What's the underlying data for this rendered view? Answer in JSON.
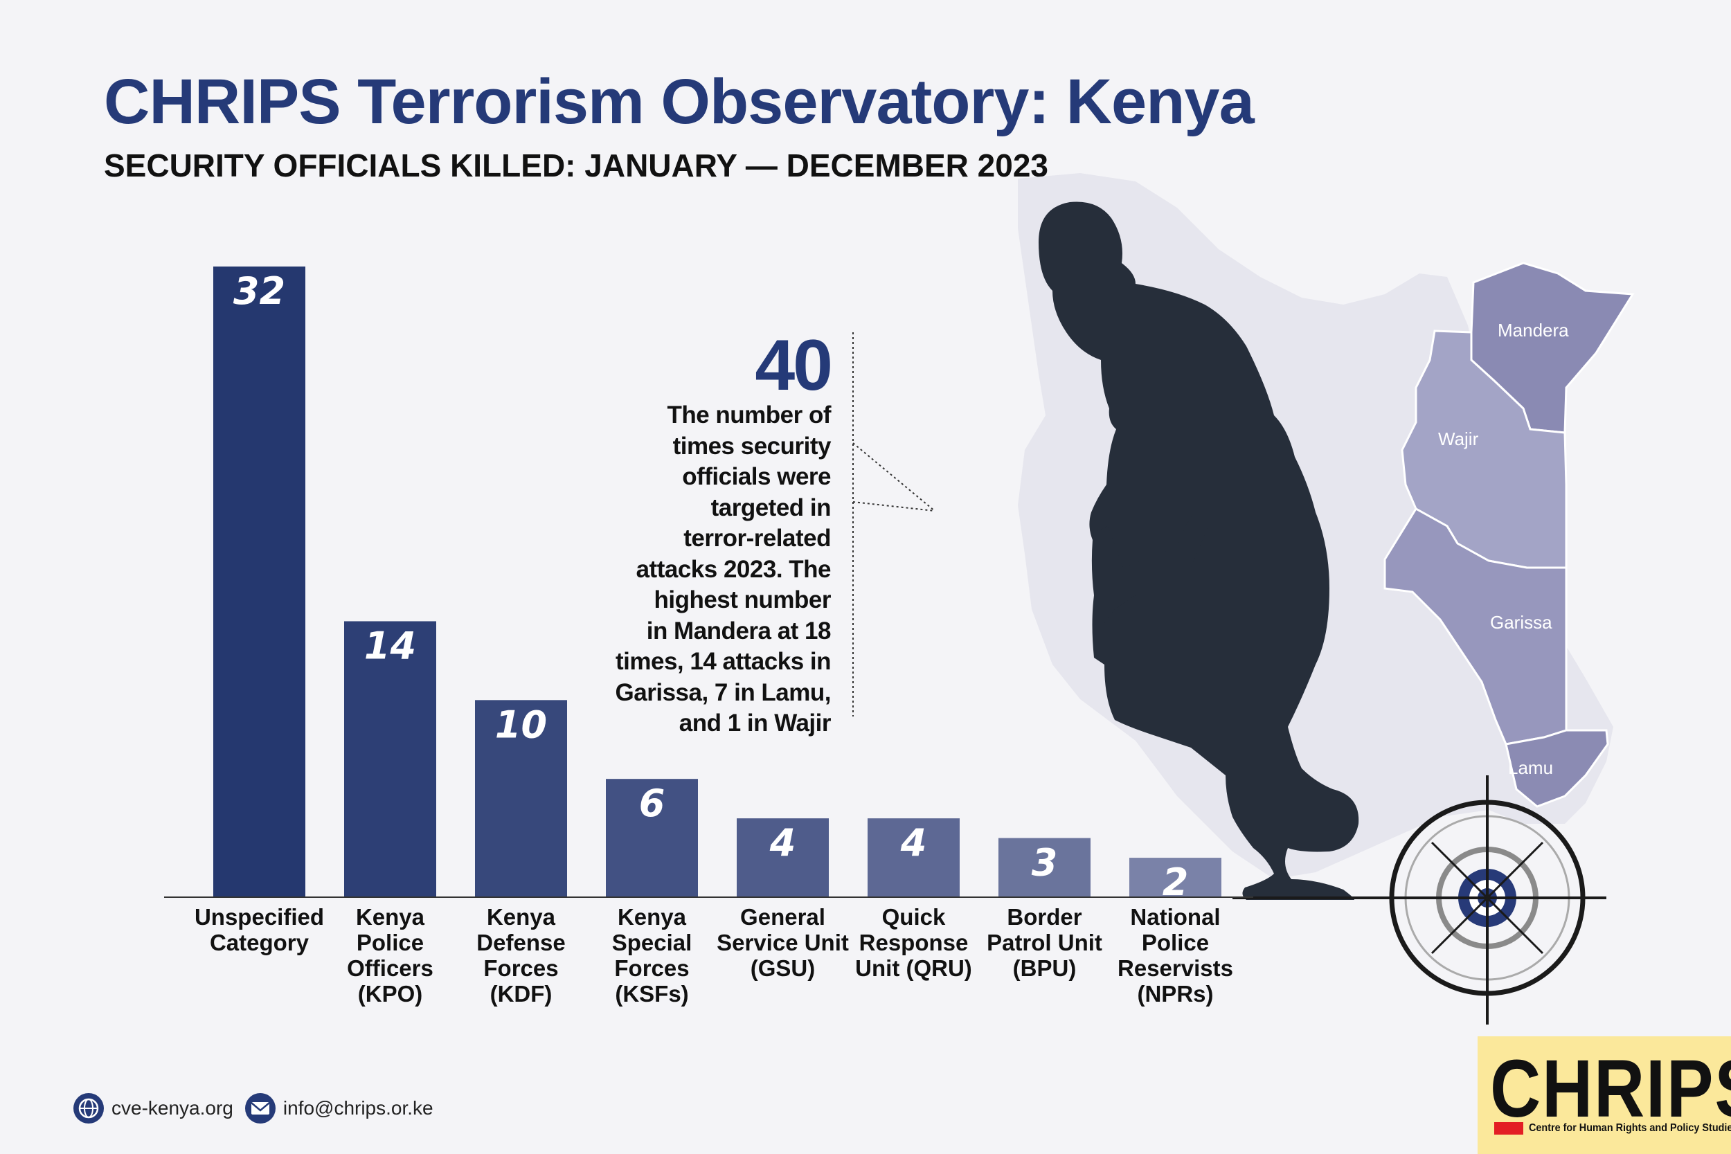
{
  "header": {
    "title": "CHRIPS Terrorism Observatory: Kenya",
    "subtitle": "SECURITY OFFICIALS KILLED: JANUARY — DECEMBER 2023"
  },
  "chart_data": {
    "type": "bar",
    "title": "SECURITY OFFICIALS KILLED: JANUARY — DECEMBER 2023",
    "categories": [
      [
        "Unspecified",
        "Category"
      ],
      [
        "Kenya",
        "Police",
        "Officers",
        "(KPO)"
      ],
      [
        "Kenya",
        "Defense",
        "Forces",
        "(KDF)"
      ],
      [
        "Kenya",
        "Special",
        "Forces",
        "(KSFs)"
      ],
      [
        "General",
        "Service Unit",
        "(GSU)"
      ],
      [
        "Quick",
        "Response",
        "Unit (QRU)"
      ],
      [
        "Border",
        "Patrol Unit",
        "(BPU)"
      ],
      [
        "National",
        "Police",
        "Reservists",
        "(NPRs)"
      ]
    ],
    "values": [
      32,
      14,
      10,
      6,
      4,
      4,
      3,
      2
    ],
    "value_labels": [
      "32",
      "14",
      "10",
      "6",
      "4",
      "4",
      "3",
      "2"
    ],
    "ylim": [
      0,
      32
    ],
    "grid": false,
    "bar_colors": [
      "#25386f",
      "#2d3f75",
      "#37487b",
      "#425183",
      "#4f5c8b",
      "#5d6894",
      "#6a749c",
      "#7a82a8"
    ]
  },
  "callout": {
    "number": "40",
    "lines": [
      "The number of",
      "times security",
      "officials were",
      "targeted in",
      "terror-related",
      "attacks 2023. The",
      "highest number",
      "in Mandera at 18",
      "times, 14 attacks in",
      "Garissa, 7 in Lamu,",
      "and 1 in Wajir"
    ]
  },
  "map": {
    "regions": [
      "Mandera",
      "Wajir",
      "Garissa",
      "Lamu"
    ],
    "base_color": "#e6e6ee",
    "region_colors": [
      "#8a8ab3",
      "#a3a4c6",
      "#9797bd",
      "#8b8bb3"
    ],
    "silhouette_color": "#262e3a"
  },
  "footer": {
    "website": "cve-kenya.org",
    "email": "info@chrips.or.ke",
    "icons": [
      "globe-icon",
      "mail-icon"
    ]
  },
  "logo": {
    "word": "CHRIPS",
    "tagline": "Centre for Human Rights and Policy Studies",
    "background": "#fbe89b",
    "accent": "#e31e24"
  }
}
